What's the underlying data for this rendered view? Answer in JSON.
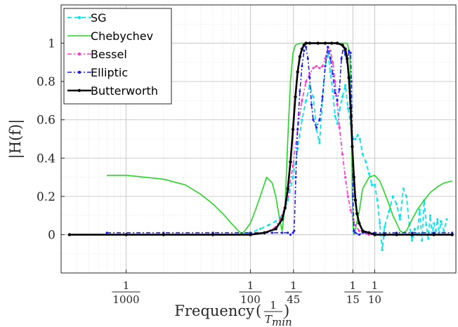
{
  "chart_data": {
    "type": "line",
    "x_scale": "log",
    "xlim": [
      0.0003,
      0.45
    ],
    "ylim": [
      -0.2,
      1.2
    ],
    "grid": true,
    "legend_position": "top-left",
    "xlabel": "Frequency",
    "xlabel_frac_num": "1",
    "xlabel_frac_den": "T",
    "xlabel_frac_den_sub": "min",
    "ylabel": "|H(f)|",
    "y_ticks": [
      0,
      0.2,
      0.4,
      0.6,
      0.8,
      1
    ],
    "y_tick_labels": [
      "0",
      "0.2",
      "0.4",
      "0.6",
      "0.8",
      "1"
    ],
    "x_ticks": [
      {
        "value": 0.001,
        "num": "1",
        "den": "1000"
      },
      {
        "value": 0.01,
        "num": "1",
        "den": "100"
      },
      {
        "value": 0.0222,
        "num": "1",
        "den": "45"
      },
      {
        "value": 0.0667,
        "num": "1",
        "den": "15"
      },
      {
        "value": 0.1,
        "num": "1",
        "den": "10"
      }
    ],
    "series": [
      {
        "name": "SG",
        "color": "#00e5ee",
        "dash": "6,4",
        "width": 1.8,
        "marker": "dot",
        "x": [
          0.0007,
          0.002,
          0.005,
          0.008,
          0.01,
          0.012,
          0.014,
          0.016,
          0.018,
          0.02,
          0.022,
          0.024,
          0.026,
          0.028,
          0.03,
          0.032,
          0.034,
          0.036,
          0.038,
          0.04,
          0.042,
          0.044,
          0.046,
          0.048,
          0.05,
          0.052,
          0.055,
          0.058,
          0.061,
          0.064,
          0.067,
          0.07,
          0.073,
          0.076,
          0.08,
          0.085,
          0.09,
          0.095,
          0.1,
          0.105,
          0.11,
          0.115,
          0.12,
          0.13,
          0.14,
          0.15,
          0.16,
          0.17,
          0.18,
          0.19,
          0.2,
          0.21,
          0.22,
          0.23,
          0.24,
          0.25,
          0.26,
          0.27,
          0.28,
          0.29,
          0.3,
          0.31,
          0.32,
          0.33,
          0.34,
          0.36,
          0.38
        ],
        "y": [
          0.0,
          0.0,
          0.0,
          0.0,
          0.01,
          0.03,
          0.05,
          0.07,
          0.1,
          0.18,
          0.3,
          0.45,
          0.6,
          0.7,
          0.78,
          0.72,
          0.55,
          0.48,
          0.7,
          0.88,
          0.95,
          0.85,
          0.75,
          0.62,
          0.58,
          0.65,
          0.72,
          0.78,
          0.66,
          0.58,
          0.5,
          0.5,
          0.52,
          0.5,
          0.42,
          0.38,
          0.32,
          0.26,
          0.26,
          0.18,
          0.06,
          -0.08,
          0.04,
          0.12,
          0.2,
          0.16,
          0.08,
          0.24,
          0.2,
          0.05,
          -0.03,
          0.03,
          0.0,
          0.13,
          -0.03,
          0.18,
          0.05,
          -0.02,
          0.1,
          0.0,
          0.06,
          0.02,
          0.08,
          0.0,
          0.07,
          0.02,
          0.08
        ]
      },
      {
        "name": "Chebychev",
        "color": "#22d822",
        "dash": "",
        "width": 1.6,
        "marker": "none",
        "x": [
          0.0007,
          0.001,
          0.002,
          0.003,
          0.004,
          0.005,
          0.006,
          0.007,
          0.0075,
          0.008,
          0.0085,
          0.009,
          0.01,
          0.011,
          0.012,
          0.0135,
          0.015,
          0.016,
          0.017,
          0.018,
          0.019,
          0.02,
          0.021,
          0.022,
          0.023,
          0.025,
          0.027,
          0.03,
          0.035,
          0.04,
          0.045,
          0.05,
          0.055,
          0.06,
          0.063,
          0.065,
          0.066,
          0.067,
          0.068,
          0.07,
          0.075,
          0.08,
          0.09,
          0.1,
          0.11,
          0.12,
          0.13,
          0.14,
          0.15,
          0.16,
          0.17,
          0.18,
          0.19,
          0.2,
          0.22,
          0.25,
          0.28,
          0.32,
          0.36,
          0.42
        ],
        "y": [
          0.31,
          0.31,
          0.29,
          0.26,
          0.21,
          0.16,
          0.11,
          0.06,
          0.04,
          0.02,
          0.005,
          0.02,
          0.06,
          0.13,
          0.2,
          0.3,
          0.27,
          0.2,
          0.1,
          0.02,
          0.15,
          0.5,
          0.8,
          0.95,
          0.99,
          1.0,
          1.0,
          1.0,
          1.0,
          1.0,
          1.0,
          1.0,
          1.0,
          1.0,
          0.95,
          0.6,
          0.2,
          0.04,
          0.0,
          0.03,
          0.12,
          0.24,
          0.3,
          0.31,
          0.28,
          0.22,
          0.16,
          0.1,
          0.06,
          0.02,
          0.01,
          0.02,
          0.05,
          0.08,
          0.13,
          0.18,
          0.22,
          0.25,
          0.27,
          0.28
        ]
      },
      {
        "name": "Bessel",
        "color": "#ff33cc",
        "dash": "6,3,2,3",
        "width": 1.6,
        "marker": "dot",
        "x": [
          0.0007,
          0.002,
          0.005,
          0.01,
          0.013,
          0.016,
          0.018,
          0.02,
          0.022,
          0.024,
          0.026,
          0.028,
          0.03,
          0.032,
          0.034,
          0.036,
          0.038,
          0.04,
          0.042,
          0.044,
          0.046,
          0.048,
          0.05,
          0.052,
          0.055,
          0.058,
          0.061,
          0.064,
          0.067,
          0.07,
          0.075,
          0.08,
          0.09,
          0.1,
          0.12,
          0.15,
          0.2,
          0.3,
          0.42
        ],
        "y": [
          0.0,
          0.0,
          0.0,
          0.0,
          0.01,
          0.04,
          0.1,
          0.2,
          0.36,
          0.55,
          0.7,
          0.8,
          0.84,
          0.87,
          0.88,
          0.87,
          0.88,
          0.92,
          0.98,
          0.96,
          0.9,
          0.8,
          0.68,
          0.56,
          0.42,
          0.3,
          0.2,
          0.13,
          0.08,
          0.05,
          0.02,
          0.01,
          0.0,
          0.0,
          0.0,
          0.0,
          0.0,
          0.0,
          0.0
        ]
      },
      {
        "name": "Elliptic",
        "color": "#1a1aff",
        "dash": "6,3,2,3",
        "width": 1.6,
        "marker": "dot",
        "x": [
          0.0007,
          0.002,
          0.005,
          0.01,
          0.015,
          0.018,
          0.02,
          0.021,
          0.022,
          0.0225,
          0.0232,
          0.024,
          0.025,
          0.026,
          0.027,
          0.028,
          0.029,
          0.03,
          0.031,
          0.032,
          0.034,
          0.036,
          0.038,
          0.04,
          0.042,
          0.044,
          0.046,
          0.048,
          0.05,
          0.052,
          0.054,
          0.056,
          0.058,
          0.06,
          0.062,
          0.064,
          0.065,
          0.066,
          0.067,
          0.068,
          0.07,
          0.075,
          0.08,
          0.1,
          0.15,
          0.2,
          0.3,
          0.42
        ],
        "y": [
          0.01,
          0.01,
          0.01,
          0.01,
          0.01,
          0.01,
          0.01,
          0.0,
          0.01,
          0.02,
          0.3,
          0.55,
          0.75,
          0.88,
          0.96,
          0.98,
          0.92,
          0.82,
          0.68,
          0.6,
          0.56,
          0.6,
          0.72,
          0.88,
          0.98,
          0.92,
          0.84,
          0.74,
          0.7,
          0.76,
          0.92,
          0.98,
          0.94,
          0.9,
          0.96,
          0.95,
          0.8,
          0.5,
          0.2,
          0.02,
          0.01,
          0.0,
          0.01,
          0.01,
          0.01,
          0.01,
          0.01,
          0.01
        ]
      },
      {
        "name": "Butterworth",
        "color": "#000000",
        "dash": "",
        "width": 2.6,
        "marker": "dot",
        "x": [
          0.00035,
          0.001,
          0.002,
          0.005,
          0.01,
          0.013,
          0.016,
          0.018,
          0.019,
          0.02,
          0.021,
          0.022,
          0.023,
          0.024,
          0.025,
          0.026,
          0.027,
          0.028,
          0.03,
          0.035,
          0.04,
          0.045,
          0.05,
          0.055,
          0.058,
          0.06,
          0.062,
          0.064,
          0.066,
          0.068,
          0.07,
          0.072,
          0.075,
          0.08,
          0.09,
          0.1,
          0.12,
          0.15,
          0.2,
          0.3,
          0.42
        ],
        "y": [
          0.0,
          0.0,
          0.0,
          0.0,
          0.0,
          0.01,
          0.03,
          0.08,
          0.14,
          0.24,
          0.38,
          0.55,
          0.72,
          0.85,
          0.93,
          0.97,
          0.99,
          1.0,
          1.0,
          1.0,
          1.0,
          1.0,
          1.0,
          0.99,
          0.97,
          0.92,
          0.82,
          0.66,
          0.46,
          0.3,
          0.18,
          0.11,
          0.06,
          0.02,
          0.01,
          0.0,
          0.0,
          0.0,
          0.0,
          0.0,
          0.0
        ]
      }
    ]
  }
}
